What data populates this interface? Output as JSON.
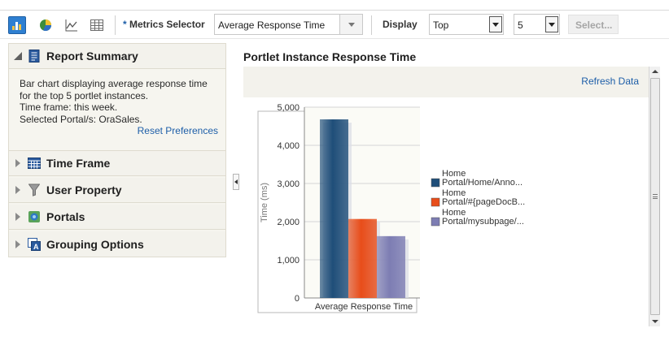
{
  "toolbar": {
    "views": [
      {
        "icon": "bar-chart-icon",
        "active": true
      },
      {
        "icon": "pie-chart-icon",
        "active": false
      },
      {
        "icon": "line-chart-icon",
        "active": false
      },
      {
        "icon": "table-icon",
        "active": false
      }
    ],
    "required_marker": "*",
    "metrics_label": "Metrics Selector",
    "metrics_value": "Average Response Time",
    "display_label": "Display",
    "display_value": "Top",
    "count_value": "5",
    "select_button": "Select..."
  },
  "left": {
    "summary": {
      "title": "Report Summary",
      "lines": [
        "Bar chart displaying average response time",
        "for the top 5 portlet instances.",
        "Time frame: this week.",
        "Selected Portal/s: OraSales."
      ],
      "reset_link": "Reset Preferences"
    },
    "sections": [
      {
        "title": "Time Frame",
        "icon": "calendar-icon"
      },
      {
        "title": "User Property",
        "icon": "funnel-icon"
      },
      {
        "title": "Portals",
        "icon": "portal-icon"
      },
      {
        "title": "Grouping Options",
        "icon": "grouping-icon"
      }
    ]
  },
  "main": {
    "portlet_title": "Portlet Instance Response Time",
    "refresh_link": "Refresh Data"
  },
  "colors": {
    "series1": "#1f4e79",
    "series2": "#e84d1a",
    "series3": "#7d7db3",
    "link": "#1d5ea8"
  },
  "chart_data": {
    "type": "bar",
    "categories": [
      "Average Response Time"
    ],
    "ylabel": "Time (ms)",
    "ylim": [
      0,
      5000
    ],
    "yticks": [
      "0",
      "1,000",
      "2,000",
      "3,000",
      "4,000",
      "5,000"
    ],
    "series": [
      {
        "name_lines": [
          "Home",
          "Portal/Home/Anno..."
        ],
        "values": [
          4680
        ]
      },
      {
        "name_lines": [
          "Home",
          "Portal/#{pageDocB..."
        ],
        "values": [
          2070
        ]
      },
      {
        "name_lines": [
          "Home",
          "Portal/mysubpage/..."
        ],
        "values": [
          1620
        ]
      }
    ],
    "legend_position": "right"
  }
}
